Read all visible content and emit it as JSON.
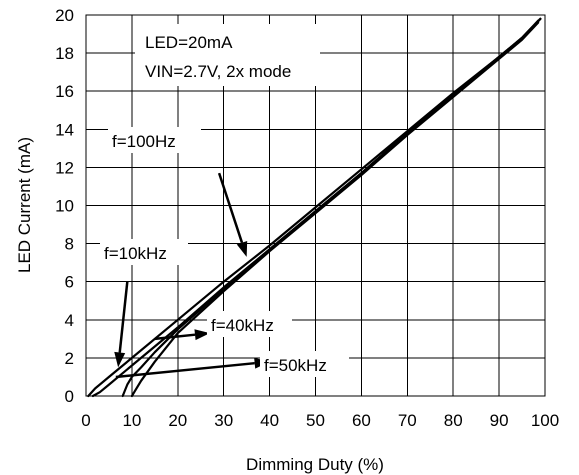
{
  "chart_data": {
    "type": "line",
    "xlabel": "Dimming Duty (%)",
    "ylabel": "LED Current (mA)",
    "xlim": [
      0,
      100
    ],
    "ylim": [
      0,
      20
    ],
    "x_ticks": [
      0,
      10,
      20,
      30,
      40,
      50,
      60,
      70,
      80,
      90,
      100
    ],
    "y_ticks": [
      0,
      2,
      4,
      6,
      8,
      10,
      12,
      14,
      16,
      18,
      20
    ],
    "grid": true,
    "conditions": [
      "LED=20mA",
      "VIN=2.7V, 2x mode"
    ],
    "series": [
      {
        "name": "f=100Hz",
        "x": [
          0.5,
          2,
          5,
          10,
          20,
          30,
          40,
          50,
          60,
          70,
          80,
          90,
          95,
          99
        ],
        "y": [
          0.0,
          0.4,
          1.0,
          2.0,
          4.0,
          6.0,
          7.9,
          9.9,
          11.9,
          13.9,
          15.9,
          17.8,
          18.8,
          19.8
        ]
      },
      {
        "name": "f=10kHz",
        "x": [
          1.5,
          3,
          5,
          10,
          20,
          30,
          40,
          50,
          60,
          70,
          80,
          90,
          95,
          99
        ],
        "y": [
          0.0,
          0.2,
          0.6,
          1.6,
          3.6,
          5.7,
          7.7,
          9.7,
          11.7,
          13.8,
          15.8,
          17.8,
          18.8,
          19.8
        ]
      },
      {
        "name": "f=40kHz",
        "x": [
          8,
          9,
          10,
          12,
          15,
          20,
          30,
          40,
          50,
          60,
          70,
          80,
          90,
          95,
          98.5
        ],
        "y": [
          0.0,
          0.6,
          1.0,
          1.5,
          2.3,
          3.5,
          5.6,
          7.7,
          9.7,
          11.7,
          13.8,
          15.8,
          17.8,
          18.8,
          19.7
        ]
      },
      {
        "name": "f=50kHz",
        "x": [
          10,
          10.5,
          12,
          15,
          20,
          30,
          40,
          50,
          60,
          70,
          80,
          90,
          95,
          98.5
        ],
        "y": [
          0.0,
          0.2,
          0.8,
          1.8,
          3.3,
          5.5,
          7.6,
          9.6,
          11.6,
          13.7,
          15.7,
          17.7,
          18.7,
          19.6
        ]
      }
    ],
    "annotations": [
      {
        "text": "f=100Hz",
        "arrow_from": [
          29,
          11.7
        ],
        "arrow_to": [
          35,
          7.3
        ]
      },
      {
        "text": "f=10kHz",
        "arrow_from": [
          9,
          6.0
        ],
        "arrow_to": [
          7,
          1.5
        ]
      },
      {
        "text": "f=40kHz",
        "arrow_from": [
          15,
          3.0
        ],
        "arrow_to": [
          27,
          3.3
        ]
      },
      {
        "text": "f=50kHz",
        "arrow_from": [
          6.5,
          1.0
        ],
        "arrow_to": [
          40,
          1.8
        ]
      }
    ]
  }
}
